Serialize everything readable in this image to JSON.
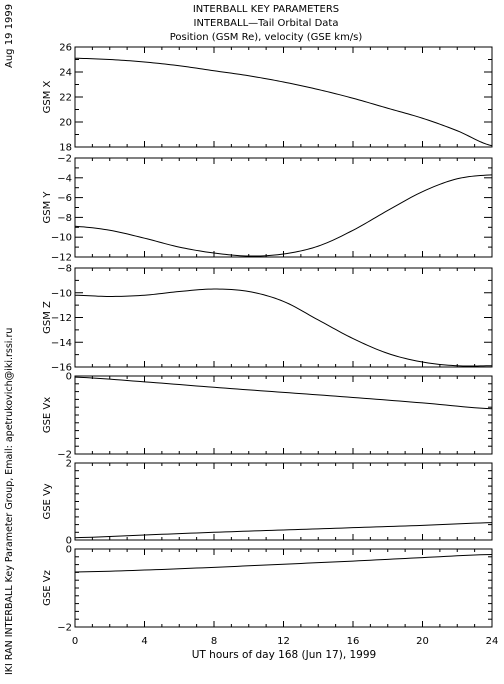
{
  "header": {
    "line1": "INTERBALL KEY PARAMETERS",
    "line2": "INTERBALL—Tail Orbital Data",
    "line3": "Position (GSM Re), velocity (GSE km/s)"
  },
  "side_date": "Aug 19 1999",
  "side_credit": "IKI RAN INTERBALL Key Parameter Group, Email: apetrukovich@iki.rssi.ru",
  "chart_data": {
    "type": "line",
    "xlabel": "UT hours of day 168 (Jun 17), 1999",
    "xlim": [
      0,
      24
    ],
    "xticks": [
      "0",
      "4",
      "8",
      "12",
      "16",
      "20",
      "24"
    ],
    "panels": [
      {
        "ylabel": "GSM X",
        "ylim": [
          18,
          26
        ],
        "yticks": [
          "18",
          "20",
          "22",
          "24",
          "26"
        ],
        "series": [
          {
            "x": [
              0,
              2,
              4,
              6,
              8,
              10,
              12,
              14,
              16,
              18,
              20,
              22,
              24
            ],
            "y": [
              25.1,
              25.0,
              24.8,
              24.5,
              24.1,
              23.7,
              23.2,
              22.6,
              21.9,
              21.1,
              20.3,
              19.3,
              18.1
            ]
          }
        ]
      },
      {
        "ylabel": "GSM Y",
        "ylim": [
          -12,
          -2
        ],
        "yticks": [
          "-12",
          "-10",
          "-8",
          "-6",
          "-4",
          "-2"
        ],
        "series": [
          {
            "x": [
              0,
              2,
              4,
              6,
              8,
              10,
              12,
              14,
              16,
              18,
              20,
              22,
              24
            ],
            "y": [
              -8.9,
              -9.3,
              -10.1,
              -11.0,
              -11.6,
              -11.9,
              -11.7,
              -10.9,
              -9.3,
              -7.3,
              -5.4,
              -4.1,
              -3.7
            ]
          }
        ]
      },
      {
        "ylabel": "GSM Z",
        "ylim": [
          -16,
          -8
        ],
        "yticks": [
          "-16",
          "-14",
          "-12",
          "-10",
          "-8"
        ],
        "series": [
          {
            "x": [
              0,
              2,
              4,
              6,
              8,
              10,
              12,
              14,
              16,
              18,
              20,
              22,
              24
            ],
            "y": [
              -10.2,
              -10.3,
              -10.2,
              -9.9,
              -9.7,
              -9.9,
              -10.7,
              -12.2,
              -13.7,
              -14.9,
              -15.6,
              -15.9,
              -15.9
            ]
          }
        ]
      },
      {
        "ylabel": "GSE Vx",
        "ylim": [
          -2,
          0
        ],
        "yticks": [
          "-2",
          "0"
        ],
        "series": [
          {
            "x": [
              0,
              4,
              8,
              12,
              16,
              20,
              24
            ],
            "y": [
              -0.03,
              -0.15,
              -0.29,
              -0.42,
              -0.55,
              -0.69,
              -0.84
            ]
          }
        ]
      },
      {
        "ylabel": "GSE Vy",
        "ylim": [
          0,
          2
        ],
        "yticks": [
          "0",
          "2"
        ],
        "series": [
          {
            "x": [
              0,
              4,
              8,
              12,
              16,
              20,
              24
            ],
            "y": [
              0.06,
              0.13,
              0.2,
              0.26,
              0.32,
              0.38,
              0.45
            ]
          }
        ]
      },
      {
        "ylabel": "GSE Vz",
        "ylim": [
          -2,
          0
        ],
        "yticks": [
          "-2",
          "0"
        ],
        "series": [
          {
            "x": [
              0,
              4,
              8,
              12,
              16,
              20,
              24
            ],
            "y": [
              -0.59,
              -0.54,
              -0.47,
              -0.39,
              -0.31,
              -0.22,
              -0.14
            ]
          }
        ]
      }
    ]
  }
}
